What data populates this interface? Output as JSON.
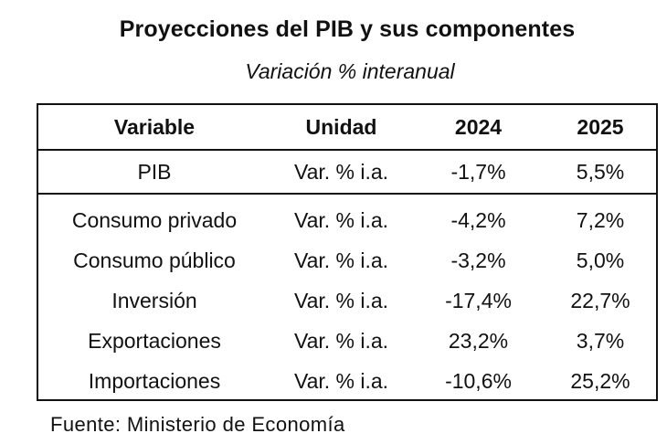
{
  "title": "Proyecciones del PIB y sus componentes",
  "subtitle": "Variación % interanual",
  "table": {
    "headers": {
      "variable": "Variable",
      "unidad": "Unidad",
      "y2024": "2024",
      "y2025": "2025"
    },
    "rows": [
      {
        "variable": "PIB",
        "unidad": "Var. % i.a.",
        "y2024": "-1,7%",
        "y2025": "5,5%"
      },
      {
        "variable": "Consumo privado",
        "unidad": "Var. % i.a.",
        "y2024": "-4,2%",
        "y2025": "7,2%"
      },
      {
        "variable": "Consumo público",
        "unidad": "Var. % i.a.",
        "y2024": "-3,2%",
        "y2025": "5,0%"
      },
      {
        "variable": "Inversión",
        "unidad": "Var. % i.a.",
        "y2024": "-17,4%",
        "y2025": "22,7%"
      },
      {
        "variable": "Exportaciones",
        "unidad": "Var. % i.a.",
        "y2024": "23,2%",
        "y2025": "3,7%"
      },
      {
        "variable": "Importaciones",
        "unidad": "Var. % i.a.",
        "y2024": "-10,6%",
        "y2025": "25,2%"
      }
    ]
  },
  "source": "Fuente: Ministerio de Economía"
}
